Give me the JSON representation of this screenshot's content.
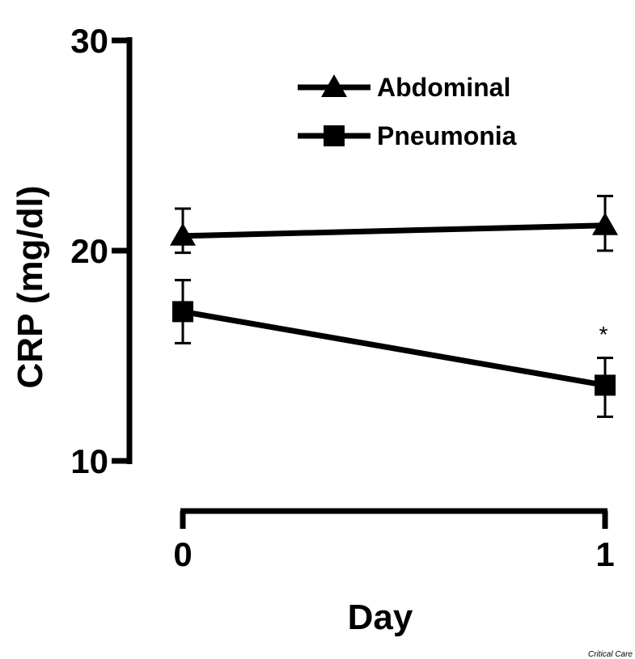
{
  "chart_data": {
    "type": "line",
    "x": [
      0,
      1
    ],
    "x_tick_labels": [
      "0",
      "1"
    ],
    "xlabel": "Day",
    "ylabel": "CRP (mg/dl)",
    "ylim": [
      10,
      30
    ],
    "y_ticks": [
      10,
      20,
      30
    ],
    "y_tick_labels": [
      "10",
      "20",
      "30"
    ],
    "grid": false,
    "legend_position": "top-right",
    "series": [
      {
        "name": "Abdominal",
        "marker": "triangle",
        "values": [
          20.7,
          21.2
        ],
        "err_low": [
          19.9,
          20.0
        ],
        "err_high": [
          22.0,
          22.6
        ],
        "color": "#000000"
      },
      {
        "name": "Pneumonia",
        "marker": "square",
        "values": [
          17.1,
          13.6
        ],
        "err_low": [
          15.6,
          12.1
        ],
        "err_high": [
          18.6,
          14.9
        ],
        "color": "#000000"
      }
    ],
    "annotations": [
      {
        "text": "*",
        "x": 1,
        "y": 16.2
      }
    ]
  },
  "credit": "Critical Care"
}
